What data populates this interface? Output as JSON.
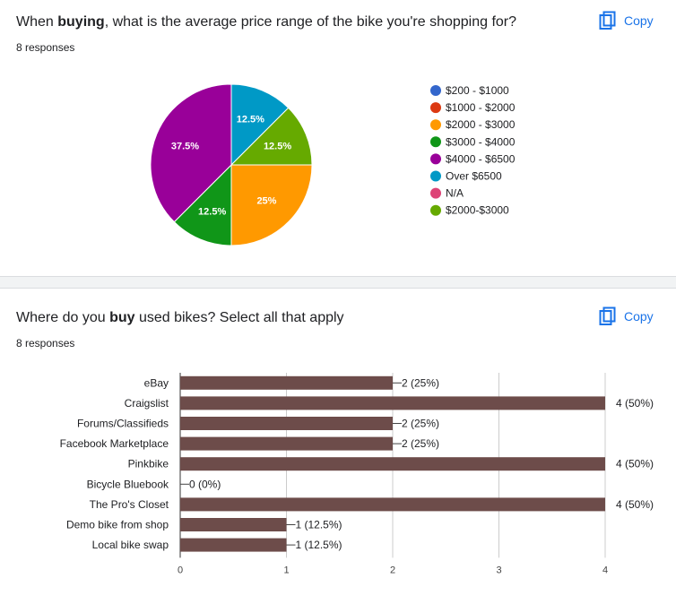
{
  "q1": {
    "title_pre": "When ",
    "title_bold": "buying",
    "title_post": ", what is the average price range of the bike you're shopping for?",
    "responses": "8 responses",
    "copy_label": "Copy"
  },
  "q2": {
    "title_pre": "Where do you ",
    "title_bold": "buy",
    "title_post": " used bikes? Select all that apply",
    "responses": "8 responses",
    "copy_label": "Copy"
  },
  "chart_data": [
    {
      "type": "pie",
      "title": "When buying, what is the average price range of the bike you're shopping for?",
      "legend_position": "right",
      "slices": [
        {
          "label": "$200 - $1000",
          "value": 0,
          "color": "#3366cc"
        },
        {
          "label": "$1000 - $2000",
          "value": 0,
          "color": "#dc3912"
        },
        {
          "label": "$2000 - $3000",
          "value": 2,
          "pct_label": "25%",
          "color": "#ff9900"
        },
        {
          "label": "$3000 - $4000",
          "value": 1,
          "pct_label": "12.5%",
          "color": "#109618"
        },
        {
          "label": "$4000 - $6500",
          "value": 3,
          "pct_label": "37.5%",
          "color": "#990099"
        },
        {
          "label": "Over $6500",
          "value": 1,
          "pct_label": "12.5%",
          "color": "#0099c6"
        },
        {
          "label": "N/A",
          "value": 0,
          "color": "#dd4477"
        },
        {
          "label": "$2000-$3000",
          "value": 1,
          "pct_label": "12.5%",
          "color": "#66aa00"
        }
      ],
      "draw_order": [
        "Over $6500",
        "$2000-$3000",
        "$2000 - $3000",
        "$3000 - $4000",
        "$4000 - $6500"
      ]
    },
    {
      "type": "bar",
      "orientation": "horizontal",
      "title": "Where do you buy used bikes? Select all that apply",
      "bar_color": "#6d4c4a",
      "xlim": [
        0,
        4
      ],
      "xticks": [
        0,
        1,
        2,
        3,
        4
      ],
      "categories": [
        "eBay",
        "Craigslist",
        "Forums/Classifieds",
        "Facebook Marketplace",
        "Pinkbike",
        "Bicycle Bluebook",
        "The Pro's Closet",
        "Demo bike from shop",
        "Local bike swap"
      ],
      "values": [
        2,
        4,
        2,
        2,
        4,
        0,
        4,
        1,
        1
      ],
      "value_labels": [
        "2 (25%)",
        "4 (50%)",
        "2 (25%)",
        "2 (25%)",
        "4 (50%)",
        "0 (0%)",
        "4 (50%)",
        "1 (12.5%)",
        "1 (12.5%)"
      ]
    }
  ]
}
